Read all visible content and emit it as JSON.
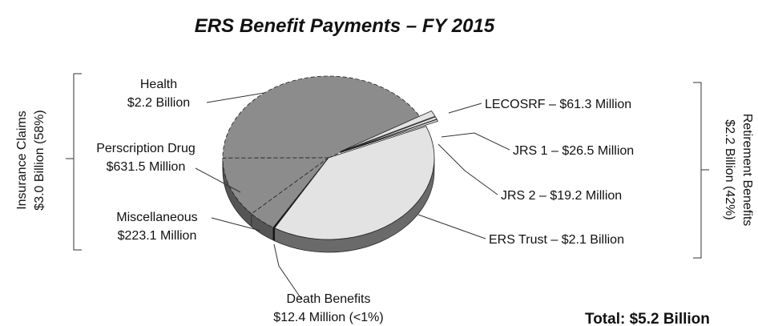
{
  "chart_data": {
    "type": "pie3d",
    "title": "ERS Benefit Payments – FY 2015",
    "values": [
      2200,
      631.5,
      223.1,
      12.4,
      2100,
      19.2,
      26.5,
      61.3
    ],
    "value_labels": [
      [
        "Health",
        "$2.2 Billion"
      ],
      [
        "Perscription Drug",
        "$631.5 Million"
      ],
      [
        "Miscellaneous",
        "$223.1 Million"
      ],
      [
        "Death Benefits",
        "$12.4 Million (<1%)"
      ],
      [
        "ERS Trust – $2.1 Billion"
      ],
      [
        "JRS 2 – $19.2 Million"
      ],
      [
        "JRS 1 – $26.5 Million"
      ],
      [
        "LECOSRF – $61.3 Million"
      ]
    ],
    "colors": [
      "#8c8c8c",
      "#8c8c8c",
      "#8c8c8c",
      "#111111",
      "#e3e3e3",
      "#e3e3e3",
      "#e3e3e3",
      "#e3e3e3"
    ],
    "groups": [
      {
        "lines": [
          "Insurance Claims",
          "$3.0 Billion (58%)"
        ]
      },
      {
        "lines": [
          "Retirement Benefits",
          "$2.2 Billion (42%)"
        ]
      }
    ],
    "total": "Total:  $5.2 Billion"
  }
}
